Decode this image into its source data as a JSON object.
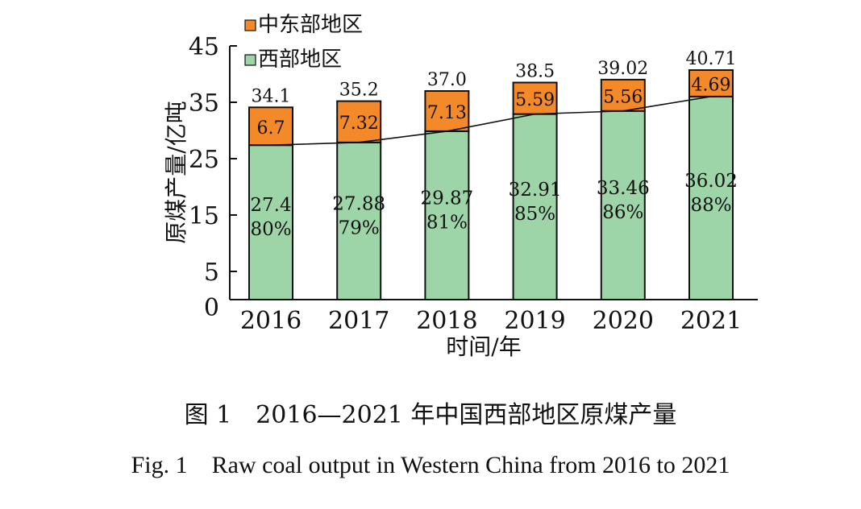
{
  "caption_cn": "图 1　2016—2021 年中国西部地区原煤产量",
  "caption_en": "Fig. 1　Raw coal output in Western China from 2016 to 2021",
  "chart_data": {
    "type": "bar",
    "stacked": true,
    "categories": [
      "2016",
      "2017",
      "2018",
      "2019",
      "2020",
      "2021"
    ],
    "xlabel": "时间/年",
    "ylabel": "原煤产量/亿吨",
    "ylim": [
      0,
      45
    ],
    "yticks": [
      "0",
      "5",
      "15",
      "25",
      "35",
      "45"
    ],
    "ytick_values": [
      0,
      5,
      15,
      25,
      35,
      45
    ],
    "legend_position": "top-left",
    "series": [
      {
        "name": "西部地区",
        "color": "#9dd4a8",
        "values": [
          27.4,
          27.88,
          29.87,
          32.91,
          33.46,
          36.02
        ],
        "value_labels": [
          "27.4",
          "27.88",
          "29.87",
          "32.91",
          "33.46",
          "36.02"
        ],
        "share_labels": [
          "80%",
          "79%",
          "81%",
          "85%",
          "86%",
          "88%"
        ]
      },
      {
        "name": "中东部地区",
        "color": "#f4892a",
        "values": [
          6.7,
          7.32,
          7.13,
          5.59,
          5.56,
          4.69
        ],
        "value_labels": [
          "6.7",
          "7.32",
          "7.13",
          "5.59",
          "5.56",
          "4.69"
        ]
      }
    ],
    "total_labels": [
      "34.1",
      "35.2",
      "37.0",
      "38.5",
      "39.02",
      "40.71"
    ],
    "trend_line": "west_top"
  }
}
